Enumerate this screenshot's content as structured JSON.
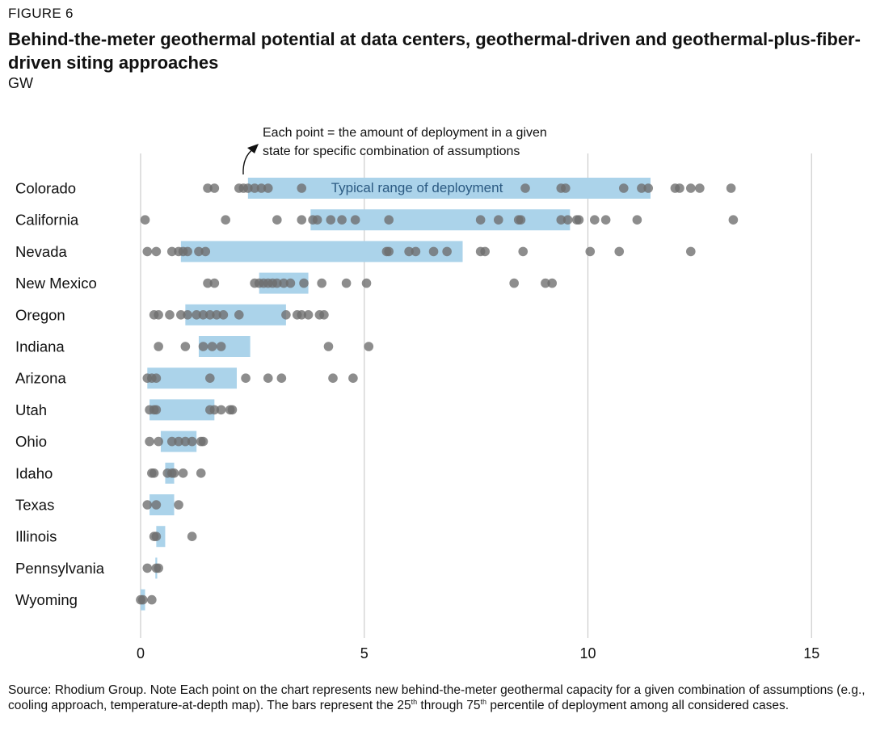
{
  "figure_label": "FIGURE 6",
  "title": "Behind-the-meter geothermal potential at data centers, geothermal-driven and geothermal-plus-fiber-driven siting approaches",
  "unit": "GW",
  "annotation": {
    "line1": "Each point = the amount of deployment in a given",
    "line2": "state for specific combination of assumptions"
  },
  "source": {
    "text1": "Source: Rhodium Group. Note Each point on the chart represents new behind-the-meter geothermal capacity for a given combination of assumptions (e.g., cooling approach, temperature-at-depth map). The bars represent the 25",
    "sup1": "th",
    "text2": " through 75",
    "sup2": "th",
    "text3": " percentile of deployment among all considered cases."
  },
  "colors": {
    "bar": "#abd3ea",
    "point": "#6d6d6d",
    "grid": "#cccccc",
    "bar_label": "#2b5a82"
  },
  "chart_data": {
    "type": "scatter",
    "orientation": "horizontal",
    "x_axis": {
      "range": [
        0,
        15
      ],
      "ticks": [
        0,
        5,
        10,
        15
      ]
    },
    "grid": "vertical",
    "bar_label": "Typical range of deployment",
    "categories": [
      {
        "name": "Colorado",
        "range": [
          2.4,
          11.4
        ],
        "points": [
          1.5,
          1.65,
          2.2,
          2.3,
          2.4,
          2.55,
          2.7,
          2.85,
          3.6,
          8.6,
          9.4,
          9.5,
          10.8,
          11.2,
          11.35,
          11.95,
          12.05,
          12.3,
          12.5,
          13.2
        ]
      },
      {
        "name": "California",
        "range": [
          3.8,
          9.6
        ],
        "points": [
          0.1,
          1.9,
          3.05,
          3.6,
          3.85,
          3.95,
          4.25,
          4.5,
          4.8,
          5.55,
          7.6,
          8.0,
          8.45,
          8.5,
          9.4,
          9.55,
          9.75,
          9.8,
          10.15,
          10.4,
          11.1,
          13.25
        ]
      },
      {
        "name": "Nevada",
        "range": [
          0.9,
          7.2
        ],
        "points": [
          0.15,
          0.35,
          0.7,
          0.85,
          0.95,
          1.05,
          1.3,
          1.45,
          5.5,
          5.55,
          6.0,
          6.15,
          6.55,
          6.85,
          7.6,
          7.7,
          8.55,
          10.05,
          10.7,
          12.3
        ]
      },
      {
        "name": "New Mexico",
        "range": [
          2.65,
          3.75
        ],
        "points": [
          1.5,
          1.65,
          2.55,
          2.65,
          2.75,
          2.85,
          2.95,
          3.05,
          3.2,
          3.35,
          3.65,
          4.05,
          4.6,
          5.05,
          8.35,
          9.05,
          9.2
        ]
      },
      {
        "name": "Oregon",
        "range": [
          1.0,
          3.25
        ],
        "points": [
          0.3,
          0.4,
          0.65,
          0.9,
          1.05,
          1.25,
          1.4,
          1.55,
          1.7,
          1.85,
          2.2,
          3.25,
          3.5,
          3.6,
          3.75,
          4.0,
          4.1
        ]
      },
      {
        "name": "Indiana",
        "range": [
          1.3,
          2.45
        ],
        "points": [
          0.4,
          1.0,
          1.4,
          1.6,
          1.8,
          4.2,
          5.1
        ]
      },
      {
        "name": "Arizona",
        "range": [
          0.15,
          2.15
        ],
        "points": [
          0.15,
          0.25,
          0.35,
          1.55,
          2.35,
          2.85,
          3.15,
          4.3,
          4.75
        ]
      },
      {
        "name": "Utah",
        "range": [
          0.2,
          1.65
        ],
        "points": [
          0.2,
          0.3,
          0.35,
          1.55,
          1.65,
          1.8,
          2.0,
          2.05
        ]
      },
      {
        "name": "Ohio",
        "range": [
          0.45,
          1.25
        ],
        "points": [
          0.2,
          0.4,
          0.7,
          0.85,
          1.0,
          1.15,
          1.35,
          1.4
        ]
      },
      {
        "name": "Idaho",
        "range": [
          0.55,
          0.75
        ],
        "points": [
          0.25,
          0.3,
          0.6,
          0.7,
          0.75,
          0.95,
          1.35
        ]
      },
      {
        "name": "Texas",
        "range": [
          0.2,
          0.75
        ],
        "points": [
          0.15,
          0.35,
          0.85
        ]
      },
      {
        "name": "Illinois",
        "range": [
          0.35,
          0.55
        ],
        "points": [
          0.3,
          0.35,
          1.15
        ]
      },
      {
        "name": "Pennsylvania",
        "range": [
          0.33,
          0.37
        ],
        "points": [
          0.15,
          0.35,
          0.4
        ]
      },
      {
        "name": "Wyoming",
        "range": [
          0.0,
          0.1
        ],
        "points": [
          0.0,
          0.05,
          0.25
        ]
      }
    ]
  }
}
